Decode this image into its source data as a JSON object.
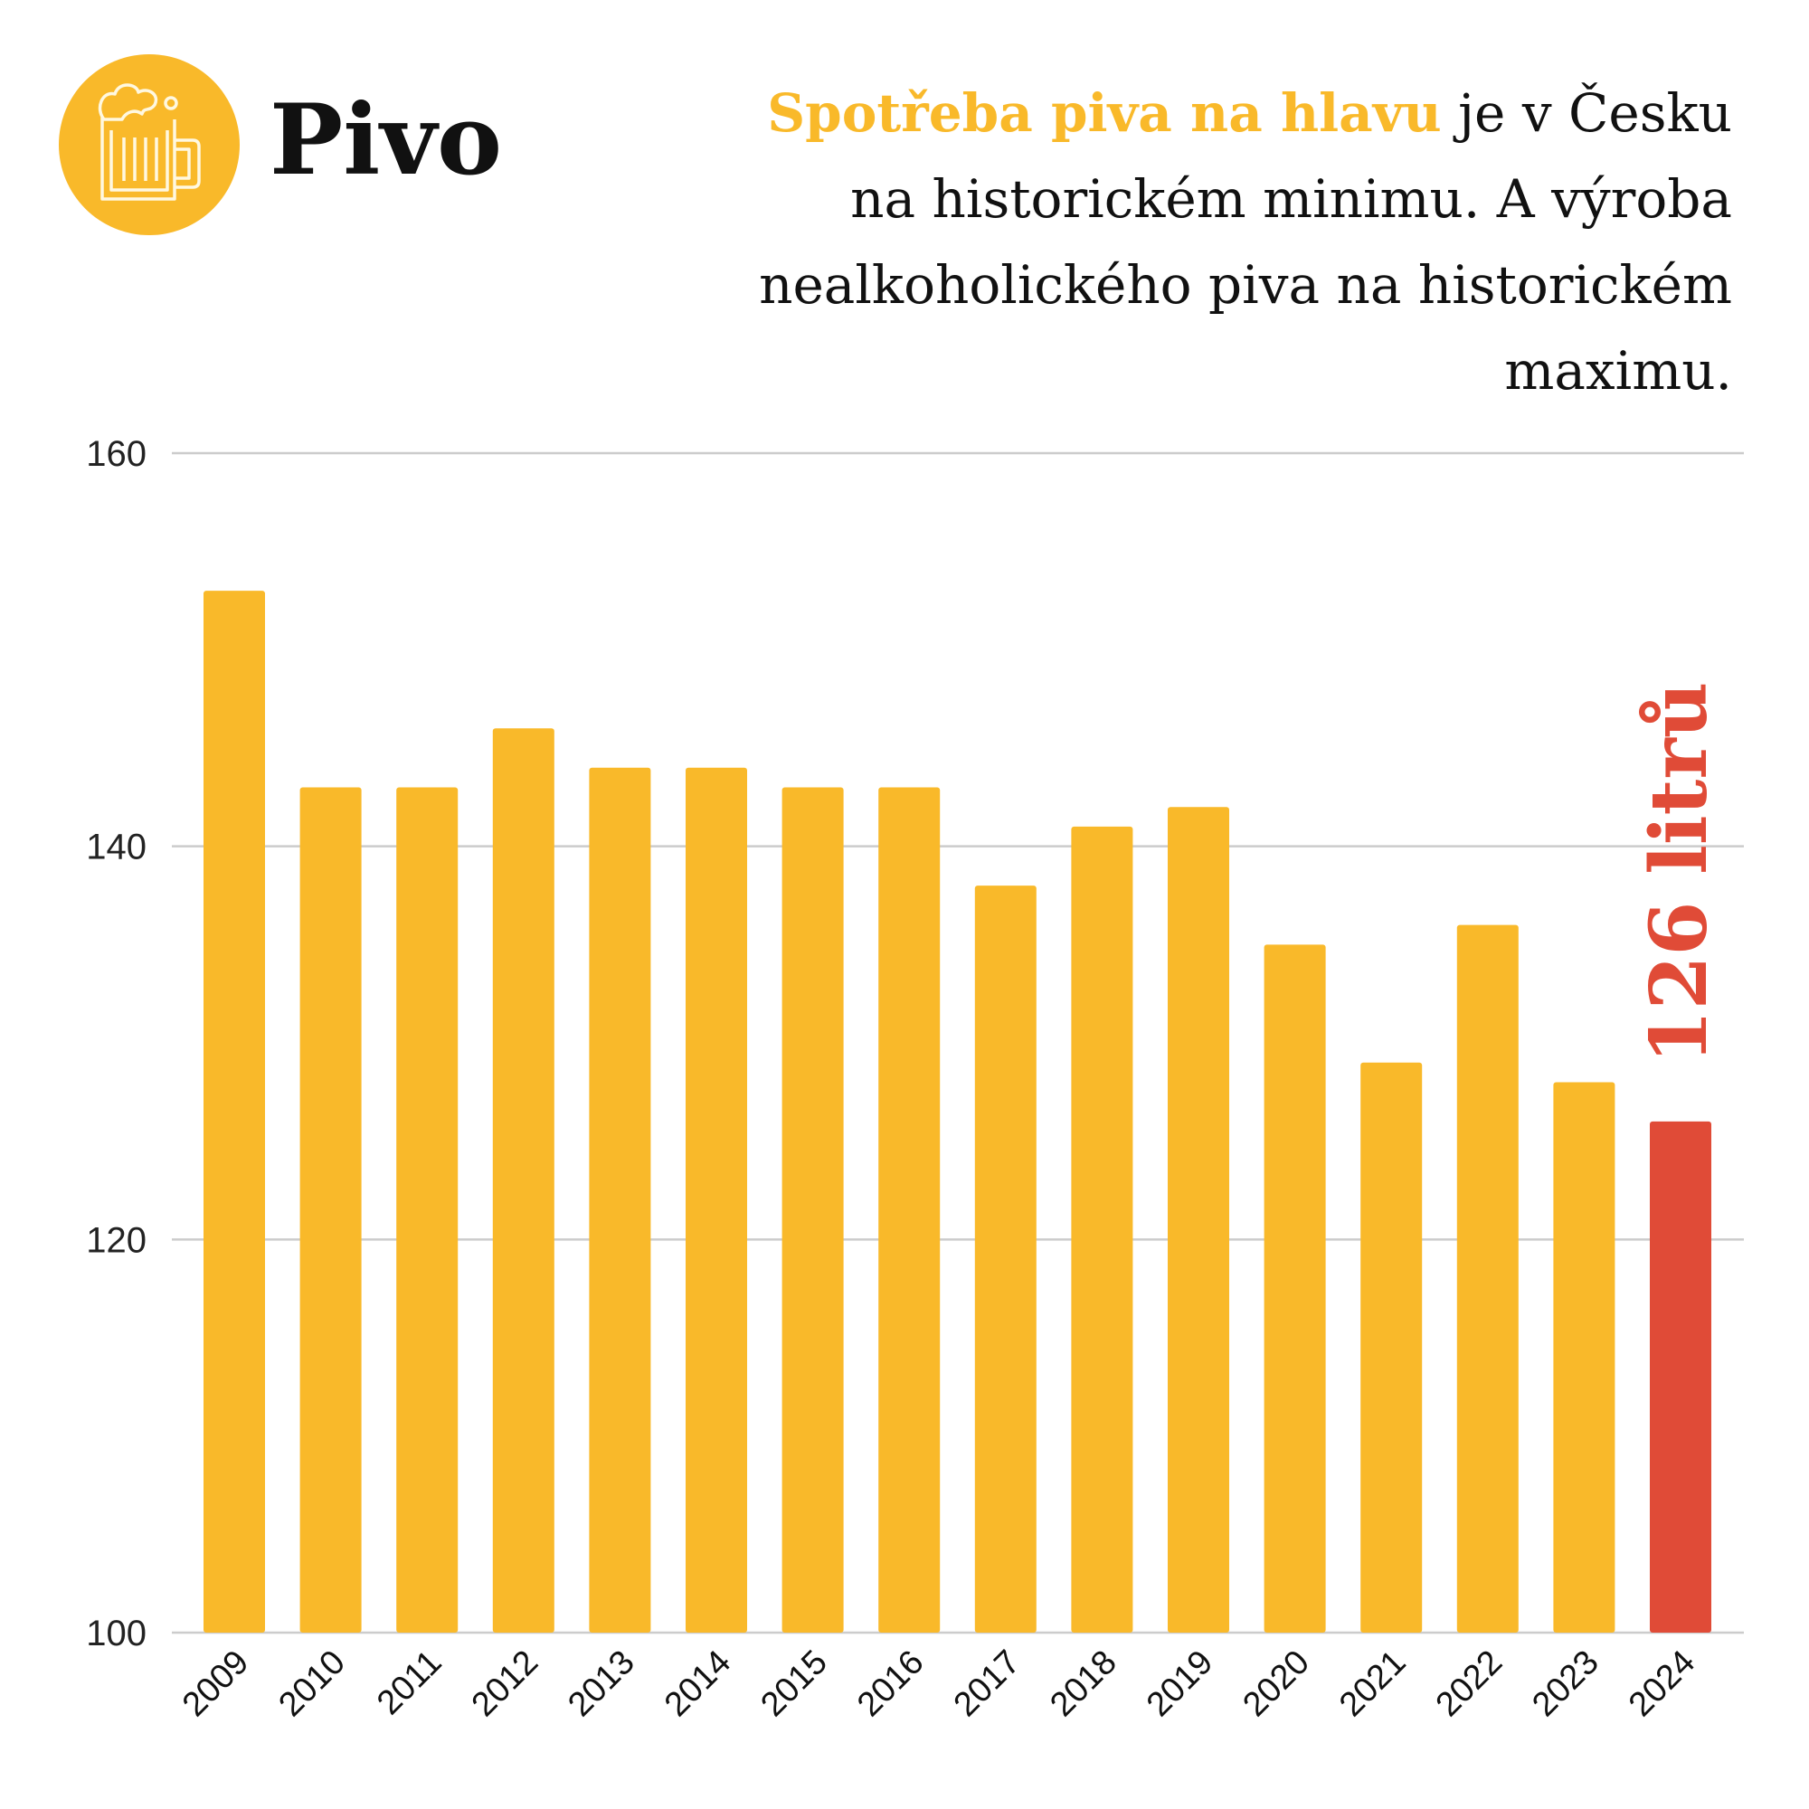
{
  "header": {
    "title": "Pivo",
    "headline_highlight": "Spotřeba piva na hlavu",
    "headline_rest": " je v Česku na historickém minimu. A výroba nealkoholického piva na historickém maximu."
  },
  "colors": {
    "bar": "#f9b92a",
    "highlight": "#e04b37",
    "grid": "#cccccc",
    "icon_bg": "#f9b92a"
  },
  "chart_data": {
    "type": "bar",
    "title": "Spotřeba piva na hlavu",
    "categories": [
      "2009",
      "2010",
      "2011",
      "2012",
      "2013",
      "2014",
      "2015",
      "2016",
      "2017",
      "2018",
      "2019",
      "2020",
      "2021",
      "2022",
      "2023",
      "2024"
    ],
    "values": [
      153,
      143,
      143,
      146,
      144,
      144,
      143,
      143,
      138,
      141,
      142,
      135,
      129,
      136,
      128,
      126
    ],
    "highlight_index": 15,
    "annotation": "126 litrů",
    "ylim": [
      100,
      160
    ],
    "yticks": [
      "100",
      "120",
      "140",
      "160"
    ],
    "xlabel": "",
    "ylabel": "",
    "grid": true
  }
}
